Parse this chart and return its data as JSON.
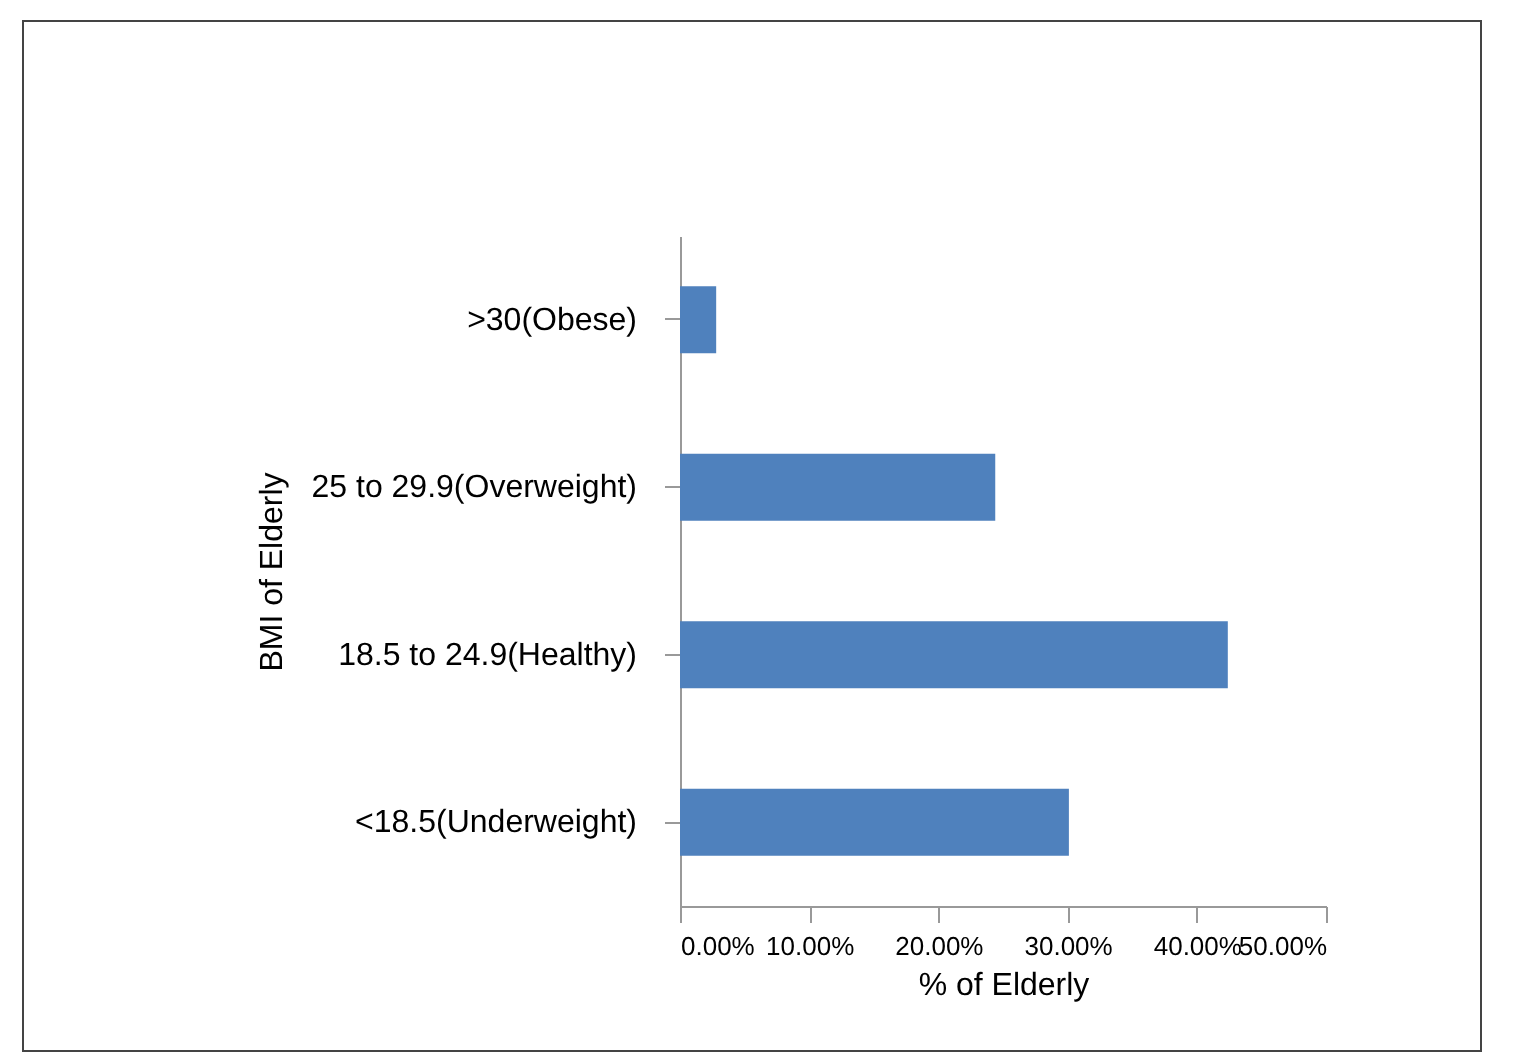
{
  "chart_data": {
    "type": "bar",
    "orientation": "horizontal",
    "xlabel": "%  of Elderly",
    "ylabel": "BMI of Elderly",
    "categories": [
      ">30(Obese)",
      "25 to 29.9(Overweight)",
      "18.5 to 24.9(Healthy)",
      "<18.5(Underweight)"
    ],
    "values": [
      2.8,
      24.4,
      42.4,
      30.1
    ],
    "color": "#4f81bd",
    "xlim": [
      0,
      50
    ],
    "xticks": [
      {
        "value": 0,
        "label": "0.00%"
      },
      {
        "value": 10,
        "label": "10.00%"
      },
      {
        "value": 20,
        "label": "20.00%"
      },
      {
        "value": 30,
        "label": "30.00%"
      },
      {
        "value": 40,
        "label": "40.00%"
      },
      {
        "value": 50,
        "label": "50.00%"
      }
    ]
  }
}
